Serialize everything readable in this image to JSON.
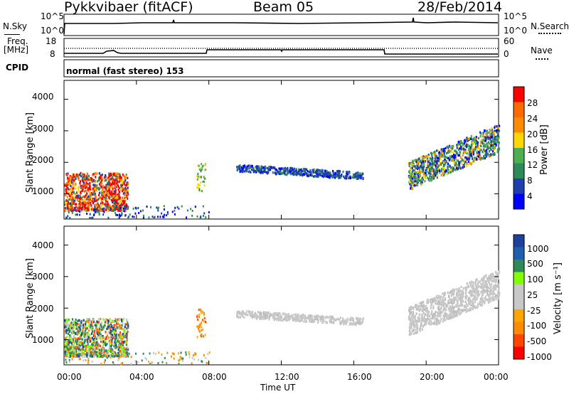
{
  "header": {
    "station": "Pykkvibaer (fitACF)",
    "beam": "Beam 05",
    "date": "28/Feb/2014"
  },
  "status_panels": {
    "nsky_label": "N.Sky",
    "nsearch_label": "N.Search",
    "freq_label": "Freq.",
    "freq_unit": "[MHz]",
    "nave_label": "Nave",
    "cpid_label": "CPID",
    "cpid_text": "normal (fast stereo) 153",
    "noise_ticks_left": [
      "10^5",
      "10^0"
    ],
    "noise_ticks_right": [
      "10^5",
      "10^0"
    ],
    "freq_ticks_left": [
      "18",
      "8"
    ],
    "freq_ticks_right": [
      "60",
      "0"
    ]
  },
  "colors": {
    "power_scale": [
      "#0000ff",
      "#1f3fb0",
      "#2e8b57",
      "#4caf50",
      "#ffd700",
      "#ff8c00",
      "#ff6a00",
      "#ff0000"
    ],
    "velocity_scale": [
      "#ff0000",
      "#ff4500",
      "#ff8c00",
      "#ffa500",
      "#c8c8c8",
      "#c8c8c8",
      "#7fff00",
      "#2e8b57",
      "#1f5fb0",
      "#2040a0"
    ]
  },
  "chart_data": [
    {
      "type": "heatmap",
      "title": "Power",
      "xlabel": "Time UT",
      "ylabel": "Slant Range [km]",
      "x_ticks": [
        "00:00",
        "04:00",
        "08:00",
        "12:00",
        "16:00",
        "20:00",
        "00:00"
      ],
      "y_ticks": [
        1000,
        2000,
        3000,
        4000
      ],
      "ylim": [
        200,
        4600
      ],
      "colorbar_label": "Power [dB]",
      "colorbar_ticks": [
        "4",
        "8",
        "12",
        "16",
        "20",
        "24",
        "28"
      ],
      "echo_regions": [
        {
          "time_hours": [
            0,
            3.5
          ],
          "range_km": [
            500,
            1700
          ],
          "level": "high"
        },
        {
          "time_hours": [
            9.5,
            16.5
          ],
          "range_km": [
            1500,
            2000
          ],
          "level": "low"
        },
        {
          "time_hours": [
            19,
            24
          ],
          "range_km": [
            1500,
            3300
          ],
          "level": "mixed"
        }
      ]
    },
    {
      "type": "heatmap",
      "title": "Velocity",
      "xlabel": "Time UT",
      "ylabel": "Slant Range [km]",
      "x_ticks": [
        "00:00",
        "04:00",
        "08:00",
        "12:00",
        "16:00",
        "20:00",
        "00:00"
      ],
      "y_ticks": [
        1000,
        2000,
        3000,
        4000
      ],
      "ylim": [
        200,
        4600
      ],
      "colorbar_label": "Velocity [m s⁻¹]",
      "colorbar_ticks": [
        "1000",
        "500",
        "100",
        "25",
        "-25",
        "-100",
        "-500",
        "-1000"
      ],
      "echo_regions": [
        {
          "time_hours": [
            0,
            3.5
          ],
          "range_km": [
            500,
            1700
          ],
          "level": "mixed"
        },
        {
          "time_hours": [
            9.5,
            16.5
          ],
          "range_km": [
            1500,
            2000
          ],
          "level": "ground"
        },
        {
          "time_hours": [
            19,
            24
          ],
          "range_km": [
            1500,
            3300
          ],
          "level": "ground"
        }
      ]
    }
  ],
  "footer": {
    "time_axis_label": "Time UT"
  }
}
